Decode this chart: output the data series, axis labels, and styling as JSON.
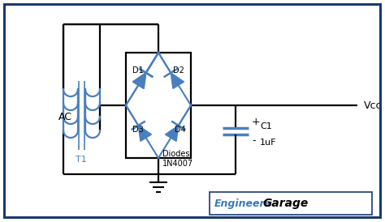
{
  "bg_color": "#ffffff",
  "border_color": "#1a3a6e",
  "wire_color": "#000000",
  "diode_color": "#4a7fbf",
  "transformer_color": "#4a7fbf",
  "label_color": "#000000",
  "watermark_engineers": "#3a7abf",
  "watermark_garage": "#000000",
  "ac_label": "AC",
  "t1_label": "T1",
  "d1_label": "D1",
  "d2_label": "D2",
  "d3_label": "D3",
  "d4_label": "D4",
  "diodes_label": "Diodes\n1N4007",
  "c1_label": "C1",
  "cap_label": "1uF",
  "vcc_label": "Vcc",
  "plus_label": "+",
  "minus_label": "-"
}
